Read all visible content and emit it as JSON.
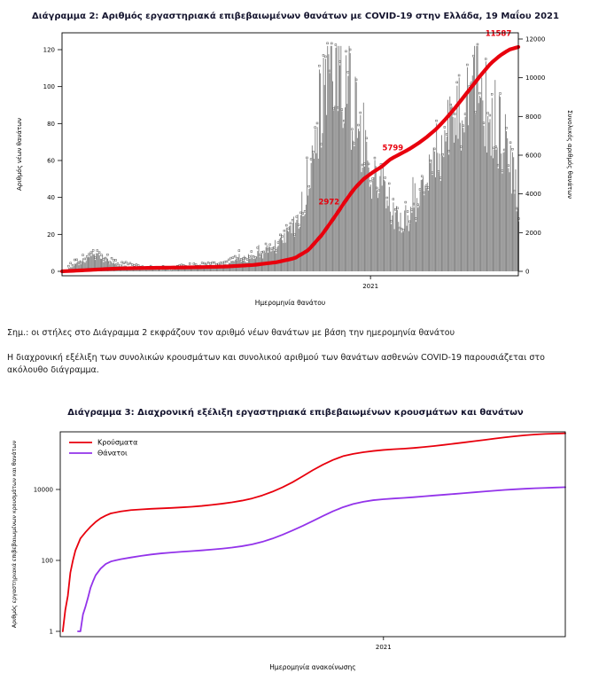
{
  "page": {
    "background": "#ffffff"
  },
  "notes": {
    "note1": "Σημ.: οι στήλες στο Διάγραμμα 2 εκφράζουν τον αριθμό νέων θανάτων με βάση την ημερομηνία θανάτου",
    "note2": "Η διαχρονική εξέλιξη των συνολικών κρουσμάτων και συνολικού αριθμού των θανάτων ασθενών COVID-19 παρουσιάζεται στο ακόλουθο διάγραμμα."
  },
  "chart_data": [
    {
      "type": "bar",
      "subtype": "bar+cumulative-line",
      "title": "Διάγραμμα 2: Αριθμός εργαστηριακά επιβεβαιωμένων θανάτων με COVID-19 στην Ελλάδα, 19 Μαΐου 2021",
      "xlabel": "Ημερομηνία θανάτου",
      "ylabel_left": "Αριθμός νέων θανάτων",
      "ylabel_right": "Συνολικός αριθμός θανάτων",
      "ylim_left": [
        0,
        120
      ],
      "yticks_left": [
        0,
        20,
        40,
        60,
        80,
        100,
        120
      ],
      "ylim_right": [
        0,
        12000
      ],
      "yticks_right": [
        0,
        2000,
        4000,
        6000,
        8000,
        10000,
        12000
      ],
      "x_tick_labels": [
        {
          "label": "2021",
          "t": 0.676
        }
      ],
      "bar_color": "#7f7f7f",
      "marker_color": "#565656",
      "line_color": "#e8000d",
      "grid": false,
      "legend_position": "none",
      "bars_daily_deaths_keypoints": [
        [
          0.0,
          0
        ],
        [
          0.01,
          1
        ],
        [
          0.03,
          4
        ],
        [
          0.05,
          6
        ],
        [
          0.07,
          9
        ],
        [
          0.09,
          7
        ],
        [
          0.11,
          4
        ],
        [
          0.13,
          3
        ],
        [
          0.15,
          2
        ],
        [
          0.18,
          1
        ],
        [
          0.21,
          1
        ],
        [
          0.24,
          1
        ],
        [
          0.27,
          2
        ],
        [
          0.3,
          2
        ],
        [
          0.33,
          3
        ],
        [
          0.36,
          4
        ],
        [
          0.39,
          6
        ],
        [
          0.42,
          8
        ],
        [
          0.45,
          11
        ],
        [
          0.47,
          14
        ],
        [
          0.49,
          18
        ],
        [
          0.51,
          24
        ],
        [
          0.53,
          40
        ],
        [
          0.55,
          65
        ],
        [
          0.57,
          95
        ],
        [
          0.585,
          110
        ],
        [
          0.6,
          118
        ],
        [
          0.61,
          113
        ],
        [
          0.62,
          104
        ],
        [
          0.63,
          96
        ],
        [
          0.64,
          86
        ],
        [
          0.65,
          77
        ],
        [
          0.66,
          68
        ],
        [
          0.67,
          60
        ],
        [
          0.68,
          54
        ],
        [
          0.69,
          50
        ],
        [
          0.7,
          44
        ],
        [
          0.71,
          39
        ],
        [
          0.72,
          34
        ],
        [
          0.73,
          31
        ],
        [
          0.74,
          28
        ],
        [
          0.75,
          27
        ],
        [
          0.76,
          28
        ],
        [
          0.77,
          31
        ],
        [
          0.78,
          36
        ],
        [
          0.79,
          40
        ],
        [
          0.8,
          46
        ],
        [
          0.81,
          52
        ],
        [
          0.82,
          58
        ],
        [
          0.83,
          63
        ],
        [
          0.84,
          69
        ],
        [
          0.85,
          75
        ],
        [
          0.86,
          81
        ],
        [
          0.87,
          87
        ],
        [
          0.88,
          92
        ],
        [
          0.89,
          96
        ],
        [
          0.9,
          99
        ],
        [
          0.91,
          95
        ],
        [
          0.92,
          90
        ],
        [
          0.93,
          86
        ],
        [
          0.94,
          83
        ],
        [
          0.95,
          80
        ],
        [
          0.96,
          76
        ],
        [
          0.97,
          73
        ],
        [
          0.98,
          65
        ],
        [
          0.99,
          50
        ],
        [
          1.0,
          30
        ]
      ],
      "cumulative_deaths_keypoints": [
        [
          0,
          0
        ],
        [
          0.05,
          60
        ],
        [
          0.09,
          110
        ],
        [
          0.13,
          150
        ],
        [
          0.18,
          175
        ],
        [
          0.24,
          192
        ],
        [
          0.3,
          213
        ],
        [
          0.36,
          250
        ],
        [
          0.42,
          330
        ],
        [
          0.47,
          470
        ],
        [
          0.51,
          680
        ],
        [
          0.54,
          1100
        ],
        [
          0.57,
          1900
        ],
        [
          0.6,
          2900
        ],
        [
          0.62,
          3600
        ],
        [
          0.64,
          4250
        ],
        [
          0.66,
          4750
        ],
        [
          0.68,
          5100
        ],
        [
          0.7,
          5400
        ],
        [
          0.72,
          5799
        ],
        [
          0.74,
          6050
        ],
        [
          0.76,
          6300
        ],
        [
          0.78,
          6600
        ],
        [
          0.8,
          6950
        ],
        [
          0.82,
          7350
        ],
        [
          0.84,
          7850
        ],
        [
          0.86,
          8400
        ],
        [
          0.88,
          9000
        ],
        [
          0.9,
          9600
        ],
        [
          0.92,
          10200
        ],
        [
          0.94,
          10750
        ],
        [
          0.96,
          11150
        ],
        [
          0.98,
          11450
        ],
        [
          1.0,
          11587
        ]
      ],
      "annotations": [
        {
          "text": "2972",
          "t": 0.585,
          "value": 3450,
          "anchor": "middle"
        },
        {
          "text": "5799",
          "t": 0.725,
          "value": 6250,
          "anchor": "middle"
        },
        {
          "text": "11587",
          "t": 0.985,
          "value": 12150,
          "anchor": "end"
        }
      ]
    },
    {
      "type": "line",
      "yscale": "log",
      "title": "Διάγραμμα 3: Διαχρονική εξέλιξη εργαστηριακά επιβεβαιωμένων κρουσμάτων και θανάτων",
      "xlabel": "Ημερομηνία ανακοίνωσης",
      "ylabel": "Αριθμός εργαστηριακά επιβεβαιωμένων κρουσμάτων και θανάτων",
      "yticks": [
        1,
        100,
        10000
      ],
      "x_tick_labels": [
        {
          "label": "2021",
          "t": 0.64
        }
      ],
      "grid": false,
      "legend": {
        "position": "top-left",
        "entries": [
          {
            "label": "Κρούσματα",
            "color": "#e8000d"
          },
          {
            "label": "Θάνατοι",
            "color": "#9333ea"
          }
        ]
      },
      "series": [
        {
          "name": "Κρούσματα",
          "color": "#e8000d",
          "points": [
            [
              0.005,
              1
            ],
            [
              0.01,
              4
            ],
            [
              0.015,
              10
            ],
            [
              0.02,
              45
            ],
            [
              0.025,
              99
            ],
            [
              0.03,
              190
            ],
            [
              0.04,
              418
            ],
            [
              0.05,
              624
            ],
            [
              0.06,
              892
            ],
            [
              0.07,
              1212
            ],
            [
              0.08,
              1544
            ],
            [
              0.09,
              1832
            ],
            [
              0.1,
              2114
            ],
            [
              0.12,
              2401
            ],
            [
              0.14,
              2620
            ],
            [
              0.16,
              2744
            ],
            [
              0.18,
              2850
            ],
            [
              0.2,
              2930
            ],
            [
              0.22,
              3020
            ],
            [
              0.24,
              3130
            ],
            [
              0.26,
              3256
            ],
            [
              0.28,
              3432
            ],
            [
              0.3,
              3672
            ],
            [
              0.32,
              3968
            ],
            [
              0.34,
              4350
            ],
            [
              0.36,
              4850
            ],
            [
              0.38,
              5600
            ],
            [
              0.4,
              6800
            ],
            [
              0.42,
              8650
            ],
            [
              0.44,
              11500
            ],
            [
              0.46,
              16000
            ],
            [
              0.48,
              23500
            ],
            [
              0.5,
              35000
            ],
            [
              0.52,
              50000
            ],
            [
              0.54,
              68000
            ],
            [
              0.56,
              87000
            ],
            [
              0.58,
              101000
            ],
            [
              0.6,
              112000
            ],
            [
              0.62,
              122000
            ],
            [
              0.64,
              130000
            ],
            [
              0.66,
              136000
            ],
            [
              0.68,
              141000
            ],
            [
              0.7,
              148000
            ],
            [
              0.72,
              157000
            ],
            [
              0.74,
              168000
            ],
            [
              0.76,
              181000
            ],
            [
              0.78,
              196000
            ],
            [
              0.8,
              212000
            ],
            [
              0.82,
              230000
            ],
            [
              0.84,
              250000
            ],
            [
              0.86,
              272000
            ],
            [
              0.88,
              295000
            ],
            [
              0.9,
              317000
            ],
            [
              0.92,
              337000
            ],
            [
              0.94,
              354000
            ],
            [
              0.96,
              367000
            ],
            [
              0.98,
              376000
            ],
            [
              1.0,
              383000
            ]
          ]
        },
        {
          "name": "Θάνατοι",
          "color": "#9333ea",
          "points": [
            [
              0.035,
              1
            ],
            [
              0.04,
              1
            ],
            [
              0.045,
              3
            ],
            [
              0.05,
              5
            ],
            [
              0.055,
              9
            ],
            [
              0.06,
              17
            ],
            [
              0.065,
              26
            ],
            [
              0.07,
              38
            ],
            [
              0.08,
              59
            ],
            [
              0.09,
              79
            ],
            [
              0.1,
              93
            ],
            [
              0.11,
              101
            ],
            [
              0.12,
              108
            ],
            [
              0.14,
              121
            ],
            [
              0.16,
              134
            ],
            [
              0.18,
              147
            ],
            [
              0.2,
              158
            ],
            [
              0.22,
              167
            ],
            [
              0.24,
              175
            ],
            [
              0.26,
              183
            ],
            [
              0.28,
              192
            ],
            [
              0.3,
              202
            ],
            [
              0.32,
              214
            ],
            [
              0.34,
              230
            ],
            [
              0.36,
              252
            ],
            [
              0.38,
              284
            ],
            [
              0.4,
              334
            ],
            [
              0.42,
              412
            ],
            [
              0.44,
              530
            ],
            [
              0.46,
              700
            ],
            [
              0.48,
              940
            ],
            [
              0.5,
              1290
            ],
            [
              0.52,
              1780
            ],
            [
              0.54,
              2430
            ],
            [
              0.56,
              3170
            ],
            [
              0.58,
              3890
            ],
            [
              0.6,
              4510
            ],
            [
              0.62,
              4990
            ],
            [
              0.64,
              5320
            ],
            [
              0.66,
              5570
            ],
            [
              0.68,
              5800
            ],
            [
              0.7,
              6070
            ],
            [
              0.72,
              6400
            ],
            [
              0.74,
              6750
            ],
            [
              0.76,
              7100
            ],
            [
              0.78,
              7480
            ],
            [
              0.8,
              7880
            ],
            [
              0.82,
              8320
            ],
            [
              0.84,
              8790
            ],
            [
              0.86,
              9260
            ],
            [
              0.88,
              9700
            ],
            [
              0.9,
              10120
            ],
            [
              0.92,
              10480
            ],
            [
              0.94,
              10800
            ],
            [
              0.96,
              11080
            ],
            [
              0.98,
              11350
            ],
            [
              1.0,
              11587
            ]
          ]
        }
      ]
    }
  ]
}
